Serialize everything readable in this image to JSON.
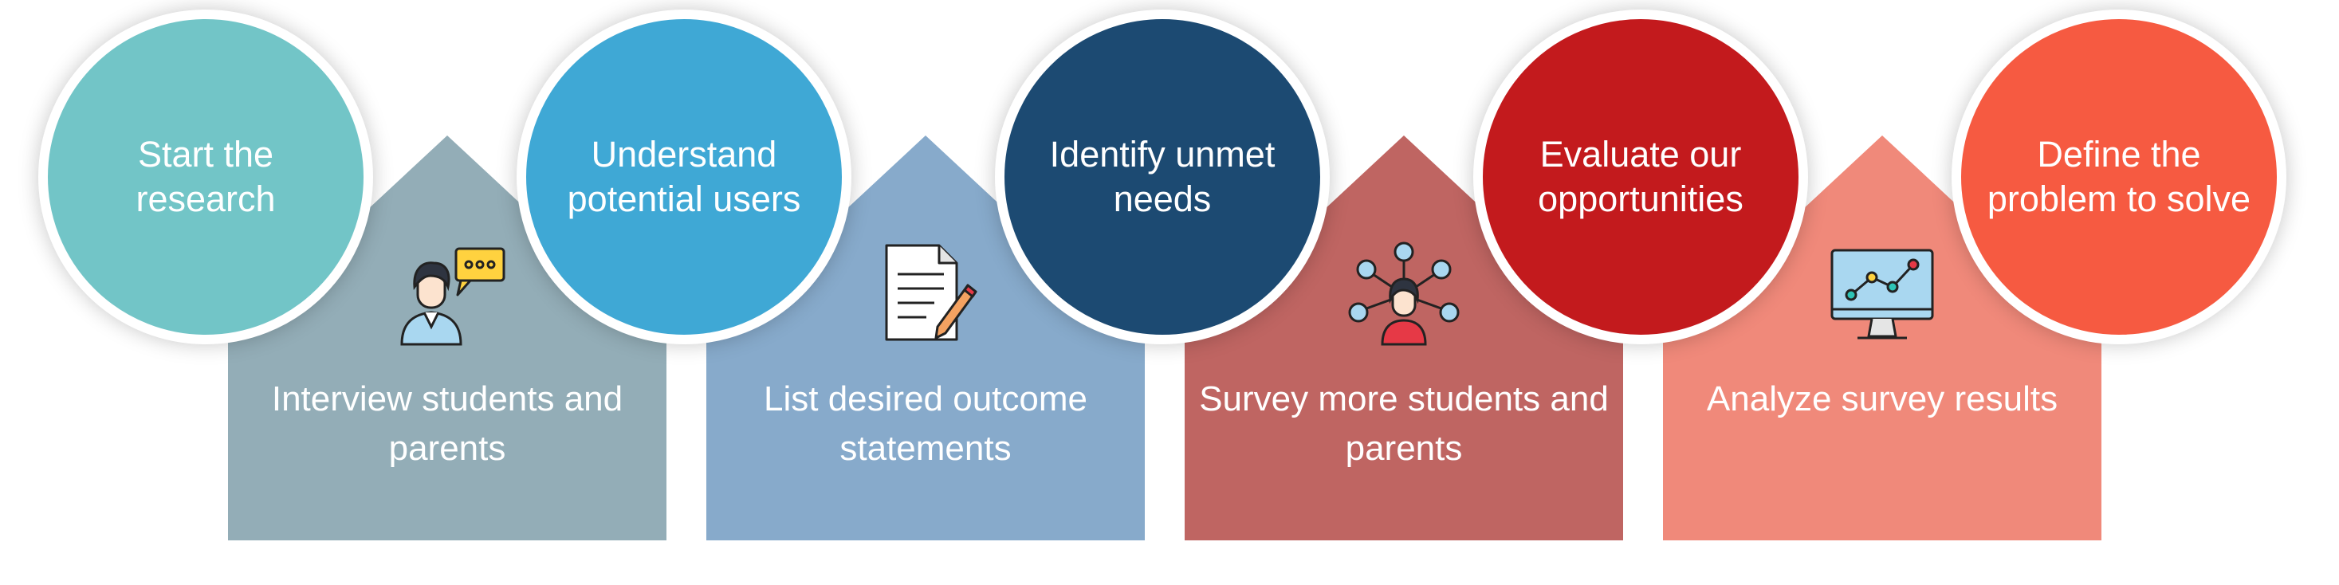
{
  "steps": [
    {
      "label": "Start the research",
      "color": "#72C5C7"
    },
    {
      "label": "Understand potential users",
      "color": "#3FA8D5"
    },
    {
      "label": "Identify unmet needs",
      "color": "#1C4A72"
    },
    {
      "label": "Evaluate our opportunities",
      "color": "#C31A1D"
    },
    {
      "label": "Define the problem to solve",
      "color": "#F65A41"
    }
  ],
  "activities": [
    {
      "label": "Interview students and parents",
      "color": "#93ADB7",
      "icon": "interview-person-icon"
    },
    {
      "label": "List desired outcome statements",
      "color": "#87AACB",
      "icon": "document-pencil-icon"
    },
    {
      "label": "Survey more students and parents",
      "color": "#BF6562",
      "icon": "network-person-icon"
    },
    {
      "label": "Analyze survey results",
      "color": "#F0897A",
      "icon": "monitor-chart-icon"
    }
  ]
}
